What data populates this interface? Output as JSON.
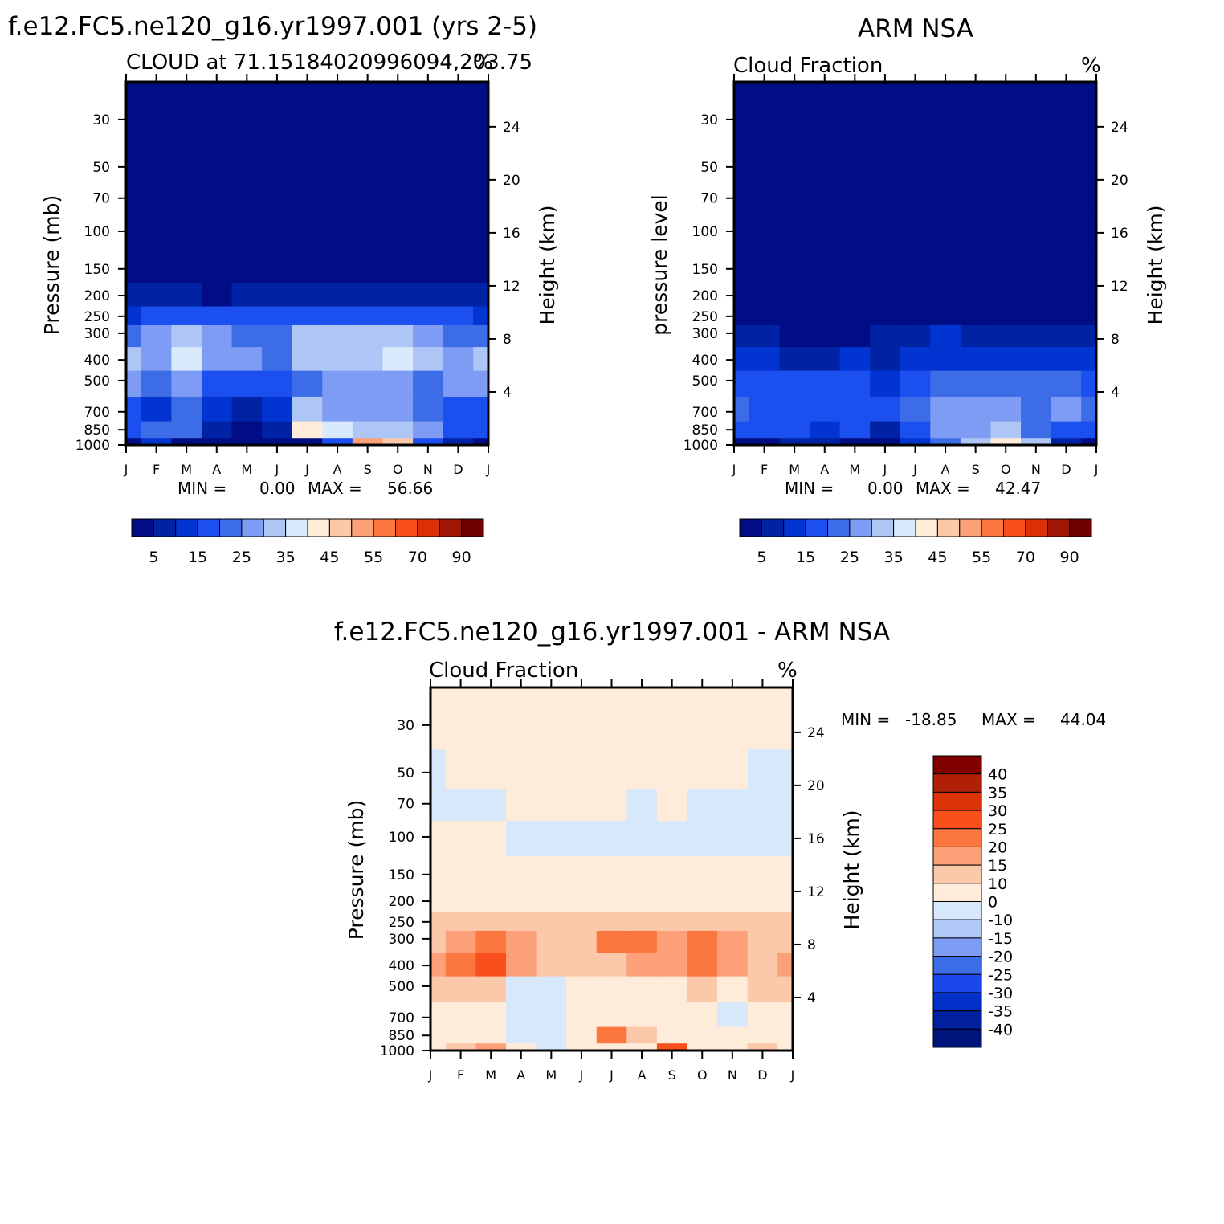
{
  "palette": {
    "seq": [
      "#000d84",
      "#0023a6",
      "#0234d2",
      "#1b4ff0",
      "#3d6de6",
      "#7f9cf4",
      "#aec6f6",
      "#d9eafc",
      "#ffecd9",
      "#fcc8aa",
      "#fba079",
      "#fb773f",
      "#f84f1c",
      "#dc2f0a",
      "#a01606",
      "#6e0000"
    ],
    "diff": [
      "#00157a",
      "#00209e",
      "#0230c8",
      "#1a48ea",
      "#3d6de6",
      "#7f9cf4",
      "#b0c9f9",
      "#d8e8fb",
      "#ffebd9",
      "#fcc8aa",
      "#fba079",
      "#fb773f",
      "#f84f1c",
      "#dc3408",
      "#b02007",
      "#800000"
    ]
  },
  "figure": {
    "panels": [
      {
        "id": "model",
        "title": "f.e12.FC5.ne120_g16.yr1997.001 (yrs 2-5)",
        "subtitle_left": "CLOUD at 71.151840209960 94,203.75",
        "subtitle_left_raw": "CLOUD at 71.15184020996094,203.75",
        "units": "%",
        "left_axis_label": "Pressure (mb)",
        "right_axis_label": "Height (km)",
        "stats": {
          "min_label": "MIN =",
          "min": "0.00",
          "max_label": "MAX =",
          "max": "56.66"
        }
      },
      {
        "id": "obs",
        "title": "ARM NSA",
        "subtitle_left": "Cloud Fraction",
        "units": "%",
        "left_axis_label": "pressure level",
        "right_axis_label": "Height (km)",
        "stats": {
          "min_label": "MIN =",
          "min": "0.00",
          "max_label": "MAX =",
          "max": "42.47"
        }
      },
      {
        "id": "diff",
        "title": "f.e12.FC5.ne120_g16.yr1997.001 - ARM NSA",
        "subtitle_left": "Cloud Fraction",
        "units": "%",
        "left_axis_label": "Pressure (mb)",
        "right_axis_label": "Height (km)",
        "stats": {
          "min_label": "MIN =",
          "min": "-18.85",
          "max_label": "MAX =",
          "max": "44.04"
        }
      }
    ],
    "colorbar_seq_labels": [
      "5",
      "15",
      "25",
      "35",
      "45",
      "55",
      "70",
      "90"
    ],
    "colorbar_diff_labels": [
      "40",
      "35",
      "30",
      "25",
      "20",
      "15",
      "10",
      "0",
      "-10",
      "-15",
      "-20",
      "-25",
      "-30",
      "-35",
      "-40"
    ]
  },
  "chart_data": [
    {
      "type": "heatmap",
      "title": "f.e12.FC5.ne120_g16.yr1997.001 (yrs 2-5)",
      "subtitle": "CLOUD at 71.15184020996094,203.75",
      "units": "%",
      "xlabel": "",
      "ylabel": "Pressure (mb)",
      "ylabel_right": "Height (km)",
      "x_categories": [
        "J",
        "F",
        "M",
        "A",
        "M",
        "J",
        "J",
        "A",
        "S",
        "O",
        "N",
        "D",
        "J"
      ],
      "y_levels_mb": [
        1000,
        850,
        700,
        500,
        400,
        300,
        250,
        200,
        150,
        100,
        70,
        50,
        30
      ],
      "y_ticks_mb": [
        30,
        50,
        70,
        100,
        150,
        200,
        250,
        300,
        400,
        500,
        700,
        850,
        1000
      ],
      "y_ticks_right_km": [
        4,
        8,
        12,
        16,
        20,
        24
      ],
      "y_scale": "log (reversed)",
      "ylim_mb": [
        1000,
        20
      ],
      "contour_levels": [
        5,
        10,
        15,
        20,
        25,
        30,
        35,
        40,
        45,
        50,
        55,
        60,
        70,
        80,
        90
      ],
      "min": 0.0,
      "max": 56.66,
      "values": [
        [
          3,
          10,
          3,
          3,
          3,
          3,
          3,
          15,
          50,
          45,
          15,
          5,
          3
        ],
        [
          15,
          22,
          20,
          8,
          3,
          5,
          40,
          35,
          30,
          30,
          28,
          15,
          15
        ],
        [
          18,
          12,
          20,
          12,
          8,
          12,
          30,
          25,
          25,
          25,
          20,
          15,
          18
        ],
        [
          25,
          22,
          28,
          18,
          15,
          18,
          22,
          25,
          25,
          28,
          22,
          25,
          25
        ],
        [
          30,
          28,
          36,
          28,
          25,
          22,
          30,
          32,
          30,
          36,
          30,
          28,
          30
        ],
        [
          20,
          26,
          30,
          26,
          24,
          22,
          30,
          32,
          30,
          30,
          26,
          24,
          20
        ],
        [
          14,
          16,
          18,
          16,
          15,
          17,
          18,
          18,
          17,
          17,
          16,
          15,
          14
        ],
        [
          7,
          9,
          5,
          4,
          5,
          6,
          8,
          8,
          7,
          6,
          6,
          7,
          7
        ],
        [
          2,
          2,
          2,
          2,
          2,
          2,
          2,
          2,
          2,
          2,
          2,
          2,
          2
        ],
        [
          1,
          1,
          1,
          1,
          1,
          1,
          1,
          1,
          1,
          1,
          1,
          1,
          1
        ],
        [
          1,
          1,
          1,
          1,
          1,
          1,
          1,
          1,
          1,
          1,
          1,
          1,
          1
        ],
        [
          1,
          1,
          1,
          1,
          1,
          1,
          1,
          1,
          1,
          1,
          1,
          1,
          1
        ],
        [
          1,
          1,
          1,
          1,
          1,
          1,
          1,
          1,
          1,
          1,
          1,
          1,
          1
        ]
      ]
    },
    {
      "type": "heatmap",
      "title": "ARM NSA",
      "subtitle": "Cloud Fraction",
      "units": "%",
      "xlabel": "",
      "ylabel": "pressure level",
      "ylabel_right": "Height (km)",
      "x_categories": [
        "J",
        "F",
        "M",
        "A",
        "M",
        "J",
        "J",
        "A",
        "S",
        "O",
        "N",
        "D",
        "J"
      ],
      "y_levels_mb": [
        1000,
        850,
        700,
        500,
        400,
        300,
        250,
        200,
        150,
        100,
        70,
        50,
        30
      ],
      "y_ticks_mb": [
        30,
        50,
        70,
        100,
        150,
        200,
        250,
        300,
        400,
        500,
        700,
        850,
        1000
      ],
      "y_ticks_right_km": [
        4,
        8,
        12,
        16,
        20,
        24
      ],
      "y_scale": "log (reversed)",
      "ylim_mb": [
        1000,
        20
      ],
      "contour_levels": [
        5,
        10,
        15,
        20,
        25,
        30,
        35,
        40,
        45,
        50,
        55,
        60,
        70,
        80,
        90
      ],
      "min": 0.0,
      "max": 42.47,
      "values": [
        [
          3,
          3,
          5,
          8,
          3,
          3,
          10,
          20,
          30,
          40,
          30,
          5,
          3
        ],
        [
          18,
          16,
          16,
          14,
          15,
          8,
          18,
          25,
          25,
          30,
          24,
          18,
          18
        ],
        [
          20,
          18,
          18,
          16,
          18,
          18,
          22,
          25,
          25,
          25,
          24,
          25,
          20
        ],
        [
          18,
          16,
          15,
          15,
          15,
          13,
          17,
          20,
          20,
          20,
          20,
          20,
          18
        ],
        [
          12,
          10,
          8,
          8,
          10,
          8,
          12,
          14,
          14,
          14,
          14,
          14,
          12
        ],
        [
          6,
          6,
          4,
          4,
          4,
          6,
          8,
          10,
          8,
          6,
          6,
          8,
          6
        ],
        [
          3,
          3,
          3,
          3,
          3,
          3,
          3,
          3,
          3,
          3,
          3,
          3,
          3
        ],
        [
          1,
          1,
          1,
          1,
          1,
          1,
          1,
          1,
          1,
          1,
          1,
          1,
          1
        ],
        [
          1,
          1,
          1,
          1,
          1,
          1,
          1,
          1,
          1,
          1,
          1,
          1,
          1
        ],
        [
          1,
          1,
          1,
          1,
          1,
          1,
          1,
          1,
          1,
          1,
          1,
          1,
          1
        ],
        [
          1,
          1,
          1,
          1,
          1,
          1,
          1,
          1,
          1,
          1,
          1,
          1,
          1
        ],
        [
          1,
          1,
          1,
          1,
          1,
          1,
          1,
          1,
          1,
          1,
          1,
          1,
          1
        ],
        [
          1,
          1,
          1,
          1,
          1,
          1,
          1,
          1,
          1,
          1,
          1,
          1,
          1
        ]
      ]
    },
    {
      "type": "heatmap",
      "title": "f.e12.FC5.ne120_g16.yr1997.001 - ARM NSA",
      "subtitle": "Cloud Fraction",
      "units": "%",
      "xlabel": "",
      "ylabel": "Pressure (mb)",
      "ylabel_right": "Height (km)",
      "x_categories": [
        "J",
        "F",
        "M",
        "A",
        "M",
        "J",
        "J",
        "A",
        "S",
        "O",
        "N",
        "D",
        "J"
      ],
      "y_levels_mb": [
        1000,
        850,
        700,
        500,
        400,
        300,
        250,
        200,
        150,
        100,
        70,
        50,
        30
      ],
      "y_ticks_mb": [
        30,
        50,
        70,
        100,
        150,
        200,
        250,
        300,
        400,
        500,
        700,
        850,
        1000
      ],
      "y_ticks_right_km": [
        4,
        8,
        12,
        16,
        20,
        24
      ],
      "y_scale": "log (reversed)",
      "ylim_mb": [
        1000,
        20
      ],
      "contour_levels": [
        -40,
        -35,
        -30,
        -25,
        -20,
        -15,
        -10,
        0,
        10,
        15,
        20,
        25,
        30,
        35,
        40
      ],
      "min": -18.85,
      "max": 44.04,
      "values": [
        [
          5,
          10,
          15,
          5,
          -10,
          0,
          5,
          5,
          25,
          5,
          5,
          10,
          5
        ],
        [
          3,
          6,
          5,
          -5,
          -5,
          3,
          22,
          10,
          5,
          3,
          3,
          3,
          3
        ],
        [
          3,
          5,
          5,
          -5,
          -5,
          3,
          8,
          3,
          3,
          3,
          -5,
          3,
          3
        ],
        [
          10,
          12,
          14,
          -5,
          -5,
          3,
          8,
          8,
          8,
          10,
          8,
          10,
          10
        ],
        [
          15,
          20,
          28,
          18,
          12,
          10,
          14,
          18,
          17,
          24,
          16,
          14,
          15
        ],
        [
          14,
          18,
          24,
          18,
          14,
          14,
          20,
          20,
          16,
          20,
          16,
          14,
          14
        ],
        [
          10,
          11,
          12,
          12,
          11,
          12,
          14,
          12,
          12,
          12,
          12,
          10,
          10
        ],
        [
          4,
          4,
          4,
          4,
          4,
          4,
          4,
          4,
          4,
          4,
          4,
          4,
          4
        ],
        [
          3,
          3,
          3,
          2,
          2,
          2,
          2,
          2,
          2,
          2,
          2,
          3,
          3
        ],
        [
          2,
          2,
          2,
          -2,
          -2,
          -2,
          -2,
          -2,
          -2,
          -3,
          -2,
          -2,
          -2
        ],
        [
          -3,
          -3,
          -3,
          2,
          2,
          2,
          2,
          -3,
          2,
          -3,
          -3,
          -3,
          -3
        ],
        [
          -2,
          2,
          2,
          2,
          2,
          2,
          2,
          2,
          2,
          2,
          2,
          -3,
          -3
        ],
        [
          2,
          2,
          2,
          2,
          2,
          2,
          2,
          2,
          2,
          2,
          2,
          2,
          2
        ]
      ]
    }
  ]
}
